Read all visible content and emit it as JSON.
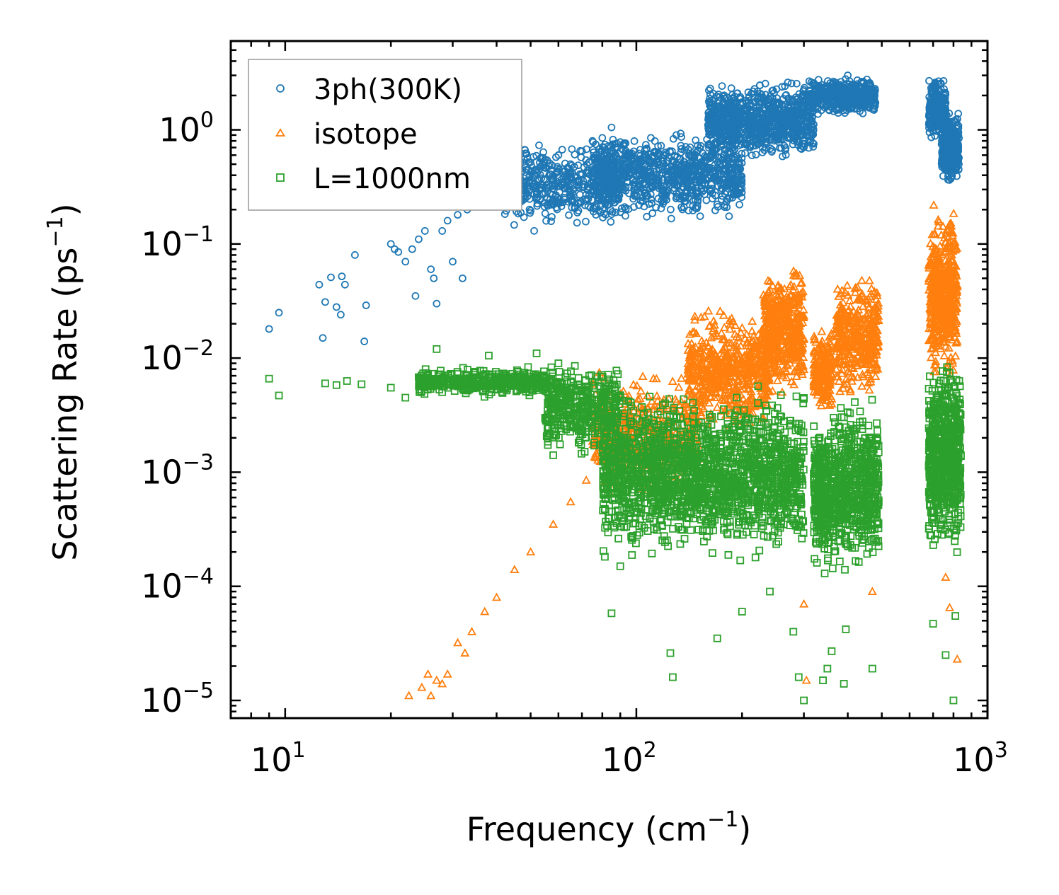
{
  "chart_data": {
    "type": "scatter",
    "xscale": "log",
    "yscale": "log",
    "xlabel": "Frequency (cm",
    "xlabel_sup": "−1",
    "xlabel_end": ")",
    "ylabel": "Scattering Rate (ps",
    "ylabel_sup": "−1",
    "ylabel_end": ")",
    "xlim": [
      7,
      1000
    ],
    "ylim": [
      7e-06,
      6
    ],
    "x_ticks": [
      {
        "value": 10,
        "base": "10",
        "exp": "1"
      },
      {
        "value": 100,
        "base": "10",
        "exp": "2"
      },
      {
        "value": 1000,
        "base": "10",
        "exp": "3"
      }
    ],
    "y_ticks": [
      {
        "value": 1e-05,
        "base": "10",
        "exp": "−5"
      },
      {
        "value": 0.0001,
        "base": "10",
        "exp": "−4"
      },
      {
        "value": 0.001,
        "base": "10",
        "exp": "−3"
      },
      {
        "value": 0.01,
        "base": "10",
        "exp": "−2"
      },
      {
        "value": 0.1,
        "base": "10",
        "exp": "−1"
      },
      {
        "value": 1,
        "base": "10",
        "exp": "0"
      }
    ],
    "legend_position": "upper-left",
    "series": [
      {
        "name": "3ph(300K)",
        "marker": "circle",
        "color": "#1f77b4",
        "points": [
          [
            9.0,
            0.018
          ],
          [
            9.6,
            0.025
          ],
          [
            12.5,
            0.044
          ],
          [
            12.8,
            0.015
          ],
          [
            13.0,
            0.031
          ],
          [
            13.5,
            0.051
          ],
          [
            14.0,
            0.028
          ],
          [
            14.5,
            0.052
          ],
          [
            14.8,
            0.044
          ],
          [
            14.4,
            0.024
          ],
          [
            15.8,
            0.08
          ],
          [
            16.8,
            0.014
          ],
          [
            17.0,
            0.029
          ],
          [
            20.0,
            0.1
          ],
          [
            20.5,
            0.09
          ],
          [
            21.0,
            0.085
          ],
          [
            22.0,
            0.07
          ],
          [
            23.0,
            0.09
          ],
          [
            23.5,
            0.035
          ],
          [
            24.0,
            0.11
          ],
          [
            25.0,
            0.13
          ],
          [
            26.0,
            0.06
          ],
          [
            26.5,
            0.05
          ],
          [
            27.0,
            0.03
          ],
          [
            28.0,
            0.13
          ],
          [
            29.0,
            0.16
          ],
          [
            30.0,
            0.07
          ],
          [
            31.0,
            0.18
          ],
          [
            32.0,
            0.05
          ],
          [
            33.0,
            0.2
          ],
          [
            35.0,
            0.3
          ],
          [
            37.0,
            0.25
          ],
          [
            40.0,
            0.33
          ],
          [
            42.0,
            0.22
          ],
          [
            45.0,
            0.4
          ],
          [
            48.0,
            0.5
          ],
          [
            52.0,
            0.45
          ],
          [
            55.0,
            0.55
          ],
          [
            60.0,
            0.6
          ],
          [
            65.0,
            0.5
          ],
          [
            70.0,
            0.65
          ],
          [
            75.0,
            0.8
          ],
          [
            80.0,
            0.85
          ],
          [
            85.0,
            1.05
          ],
          [
            95.0,
            0.6
          ],
          [
            110.0,
            0.85
          ],
          [
            130.0,
            0.9
          ],
          [
            160.0,
            1.1
          ],
          [
            190.0,
            1.8
          ],
          [
            230.0,
            1.9
          ],
          [
            270.0,
            2.6
          ],
          [
            330.0,
            2.1
          ],
          [
            400.0,
            3.0
          ],
          [
            460.0,
            2.2
          ],
          [
            710.0,
            2.6
          ],
          [
            760.0,
            1.2
          ],
          [
            820.0,
            0.85
          ]
        ],
        "bands": [
          {
            "x": [
              38,
              90
            ],
            "y": [
              0.12,
              0.9
            ],
            "n": 500
          },
          {
            "x": [
              75,
              200
            ],
            "y": [
              0.15,
              1.1
            ],
            "n": 900
          },
          {
            "x": [
              160,
              320
            ],
            "y": [
              0.5,
              2.8
            ],
            "n": 900
          },
          {
            "x": [
              310,
              480
            ],
            "y": [
              1.3,
              3.0
            ],
            "n": 500
          },
          {
            "x": [
              680,
              760
            ],
            "y": [
              0.8,
              3.0
            ],
            "n": 250
          },
          {
            "x": [
              740,
              830
            ],
            "y": [
              0.32,
              1.6
            ],
            "n": 350
          }
        ]
      },
      {
        "name": "isotope",
        "marker": "triangle",
        "color": "#ff7f0e",
        "points": [
          [
            22.5,
            1.1e-05
          ],
          [
            24.5,
            1.3e-05
          ],
          [
            25.5,
            1.7e-05
          ],
          [
            26.0,
            1.1e-05
          ],
          [
            27.0,
            1.5e-05
          ],
          [
            28.0,
            1.4e-05
          ],
          [
            29.0,
            1.7e-05
          ],
          [
            31.0,
            3.2e-05
          ],
          [
            32.5,
            2.6e-05
          ],
          [
            34.0,
            4e-05
          ],
          [
            37.0,
            6e-05
          ],
          [
            40.0,
            8e-05
          ],
          [
            45.0,
            0.00014
          ],
          [
            50.0,
            0.0002
          ],
          [
            58.0,
            0.00035
          ],
          [
            65.0,
            0.00055
          ],
          [
            72.0,
            0.00085
          ],
          [
            300.0,
            7e-05
          ],
          [
            305.0,
            1.5e-05
          ],
          [
            470.0,
            9e-05
          ],
          [
            780.0,
            6.5e-05
          ],
          [
            820.0,
            2.3e-05
          ],
          [
            760.0,
            0.00012
          ]
        ],
        "bands": [
          {
            "x": [
              75,
              150
            ],
            "y": [
              0.0005,
              0.009
            ],
            "n": 500
          },
          {
            "x": [
              140,
              240
            ],
            "y": [
              0.002,
              0.03
            ],
            "n": 600
          },
          {
            "x": [
              230,
              300
            ],
            "y": [
              0.004,
              0.07
            ],
            "n": 500
          },
          {
            "x": [
              320,
              360
            ],
            "y": [
              0.003,
              0.02
            ],
            "n": 200
          },
          {
            "x": [
              370,
              490
            ],
            "y": [
              0.004,
              0.065
            ],
            "n": 400
          },
          {
            "x": [
              680,
              820
            ],
            "y": [
              0.005,
              0.25
            ],
            "n": 500
          }
        ]
      },
      {
        "name": "L=1000nm",
        "marker": "square",
        "color": "#2ca02c",
        "points": [
          [
            9.0,
            0.0066
          ],
          [
            9.6,
            0.0047
          ],
          [
            13.0,
            0.006
          ],
          [
            14.0,
            0.0058
          ],
          [
            15.0,
            0.0063
          ],
          [
            16.5,
            0.0059
          ],
          [
            20.0,
            0.0055
          ],
          [
            22.0,
            0.0045
          ],
          [
            24.0,
            0.0068
          ],
          [
            27.0,
            0.012
          ],
          [
            30.0,
            0.0063
          ],
          [
            33.0,
            0.007
          ],
          [
            38.0,
            0.0105
          ],
          [
            42.0,
            0.0062
          ],
          [
            52.0,
            0.011
          ],
          [
            60.0,
            0.009
          ],
          [
            85.0,
            5.8e-05
          ],
          [
            90.0,
            0.00015
          ],
          [
            125.0,
            2.6e-05
          ],
          [
            127.0,
            1.6e-05
          ],
          [
            170.0,
            3.5e-05
          ],
          [
            280.0,
            4e-05
          ],
          [
            290.0,
            1.6e-05
          ],
          [
            340.0,
            1.5e-05
          ],
          [
            350.0,
            1.9e-05
          ],
          [
            360.0,
            2.7e-05
          ],
          [
            390.0,
            1.4e-05
          ],
          [
            395.0,
            4.2e-05
          ],
          [
            470.0,
            1.9e-05
          ],
          [
            700.0,
            4.7e-05
          ],
          [
            760.0,
            2.5e-05
          ],
          [
            800.0,
            1e-05
          ],
          [
            810.0,
            5.5e-05
          ],
          [
            300.0,
            1e-05
          ],
          [
            240.0,
            9e-05
          ],
          [
            200.0,
            6e-05
          ]
        ],
        "bands": [
          {
            "x": [
              24,
              60
            ],
            "y": [
              0.0045,
              0.0085
            ],
            "n": 400
          },
          {
            "x": [
              55,
              90
            ],
            "y": [
              0.0012,
              0.011
            ],
            "n": 400
          },
          {
            "x": [
              80,
              300
            ],
            "y": [
              0.00015,
              0.006
            ],
            "n": 1800
          },
          {
            "x": [
              320,
              370
            ],
            "y": [
              0.0001,
              0.004
            ],
            "n": 350
          },
          {
            "x": [
              375,
              490
            ],
            "y": [
              0.00012,
              0.005
            ],
            "n": 500
          },
          {
            "x": [
              680,
              840
            ],
            "y": [
              0.00015,
              0.012
            ],
            "n": 700
          }
        ]
      }
    ]
  },
  "colors": {
    "blue": "#1f77b4",
    "orange": "#ff7f0e",
    "green": "#2ca02c"
  }
}
